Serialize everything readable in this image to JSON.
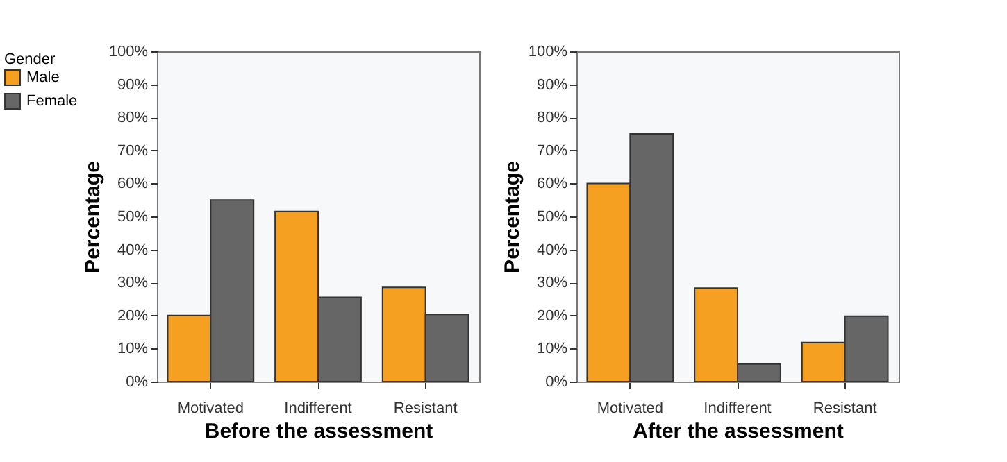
{
  "chart_data": [
    {
      "type": "bar",
      "xlabel": "Before the assessment",
      "ylabel": "Percentage",
      "legend_title": "Gender",
      "legend": "top left",
      "categories": [
        "Motivated",
        "Indifferent",
        "Resistant"
      ],
      "series": [
        {
          "name": "Male",
          "color": "#f5a020",
          "values": [
            20,
            51.5,
            28.5
          ]
        },
        {
          "name": "Female",
          "color": "#666666",
          "values": [
            55,
            25.5,
            20.3
          ]
        }
      ],
      "ylim": [
        0,
        100
      ],
      "yticks": [
        {
          "value": 0,
          "label": "0%"
        },
        {
          "value": 10,
          "label": "10%"
        },
        {
          "value": 20,
          "label": "20%"
        },
        {
          "value": 30,
          "label": "30%"
        },
        {
          "value": 40,
          "label": "40%"
        },
        {
          "value": 50,
          "label": "50%"
        },
        {
          "value": 60,
          "label": "60%"
        },
        {
          "value": 70,
          "label": "70%"
        },
        {
          "value": 80,
          "label": "80%"
        },
        {
          "value": 90,
          "label": "90%"
        },
        {
          "value": 100,
          "label": "100%"
        }
      ]
    },
    {
      "type": "bar",
      "xlabel": "After the assessment",
      "ylabel": "Percentage",
      "categories": [
        "Motivated",
        "Indifferent",
        "Resistant"
      ],
      "series": [
        {
          "color": "#f5a020",
          "values": [
            60,
            28.3,
            11.8
          ]
        },
        {
          "color": "#666666",
          "values": [
            75,
            5.3,
            19.8
          ]
        }
      ],
      "ylim": [
        0,
        100
      ],
      "yticks": [
        {
          "value": 0,
          "label": "0%"
        },
        {
          "value": 10,
          "label": "10%"
        },
        {
          "value": 20,
          "label": "20%"
        },
        {
          "value": 30,
          "label": "30%"
        },
        {
          "value": 40,
          "label": "40%"
        },
        {
          "value": 50,
          "label": "50%"
        },
        {
          "value": 60,
          "label": "60%"
        },
        {
          "value": 70,
          "label": "70%"
        },
        {
          "value": 80,
          "label": "80%"
        },
        {
          "value": 90,
          "label": "90%"
        },
        {
          "value": 100,
          "label": "100%"
        }
      ]
    }
  ]
}
